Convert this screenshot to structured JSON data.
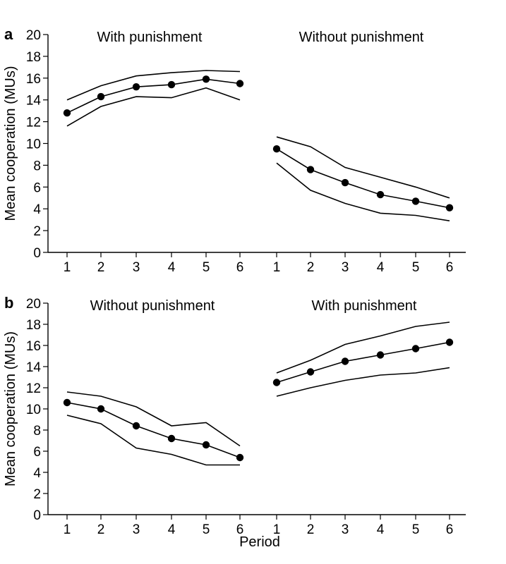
{
  "chart_data": [
    {
      "type": "line",
      "panel_label": "a",
      "ylabel": "Mean cooperation (MUs)",
      "xlabel": "",
      "ylim": [
        0,
        20
      ],
      "yticks": [
        0,
        2,
        4,
        6,
        8,
        10,
        12,
        14,
        16,
        18,
        20
      ],
      "grid": false,
      "segments": [
        {
          "label": "With punishment",
          "x": [
            1,
            2,
            3,
            4,
            5,
            6
          ],
          "mean": [
            12.8,
            14.3,
            15.2,
            15.4,
            15.9,
            15.5
          ],
          "upper": [
            14.0,
            15.3,
            16.2,
            16.5,
            16.7,
            16.6
          ],
          "lower": [
            11.6,
            13.4,
            14.3,
            14.2,
            15.1,
            14.0
          ]
        },
        {
          "label": "Without punishment",
          "x": [
            1,
            2,
            3,
            4,
            5,
            6
          ],
          "mean": [
            9.5,
            7.6,
            6.4,
            5.3,
            4.7,
            4.1
          ],
          "upper": [
            10.6,
            9.7,
            7.8,
            6.9,
            6.0,
            5.0
          ],
          "lower": [
            8.2,
            5.7,
            4.5,
            3.6,
            3.4,
            2.9
          ]
        }
      ]
    },
    {
      "type": "line",
      "panel_label": "b",
      "ylabel": "Mean cooperation (MUs)",
      "xlabel": "Period",
      "ylim": [
        0,
        20
      ],
      "yticks": [
        0,
        2,
        4,
        6,
        8,
        10,
        12,
        14,
        16,
        18,
        20
      ],
      "grid": false,
      "segments": [
        {
          "label": "Without punishment",
          "x": [
            1,
            2,
            3,
            4,
            5,
            6
          ],
          "mean": [
            10.6,
            10.0,
            8.4,
            7.2,
            6.6,
            5.4
          ],
          "upper": [
            11.6,
            11.2,
            10.2,
            8.4,
            8.7,
            6.5
          ],
          "lower": [
            9.4,
            8.6,
            6.3,
            5.7,
            4.7,
            4.7
          ]
        },
        {
          "label": "With punishment",
          "x": [
            1,
            2,
            3,
            4,
            5,
            6
          ],
          "mean": [
            12.5,
            13.5,
            14.5,
            15.1,
            15.7,
            16.3
          ],
          "upper": [
            13.4,
            14.6,
            16.1,
            16.9,
            17.8,
            18.2
          ],
          "lower": [
            11.2,
            12.0,
            12.7,
            13.2,
            13.4,
            13.9
          ]
        }
      ]
    }
  ]
}
